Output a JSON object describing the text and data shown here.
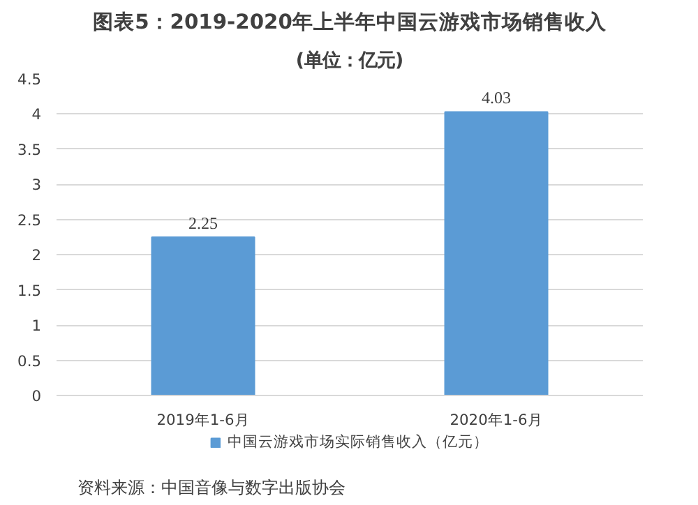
{
  "chart_data": {
    "type": "bar",
    "title": "图表5：2019-2020年上半年中国云游戏市场销售收入",
    "subtitle": "(单位：亿元)",
    "categories": [
      "2019年1-6月",
      "2020年1-6月"
    ],
    "series": [
      {
        "name": "中国云游戏市场实际销售收入（亿元）",
        "color": "#5b9bd5",
        "values": [
          2.25,
          4.03
        ]
      }
    ],
    "ylim": [
      0,
      4.5
    ],
    "yticks": [
      0,
      0.5,
      1,
      1.5,
      2,
      2.5,
      3,
      3.5,
      4,
      4.5
    ],
    "grid": "y",
    "legend": "bottom",
    "data_labels": true,
    "annotations": [
      "资料来源：中国音像与数字出版协会"
    ]
  }
}
